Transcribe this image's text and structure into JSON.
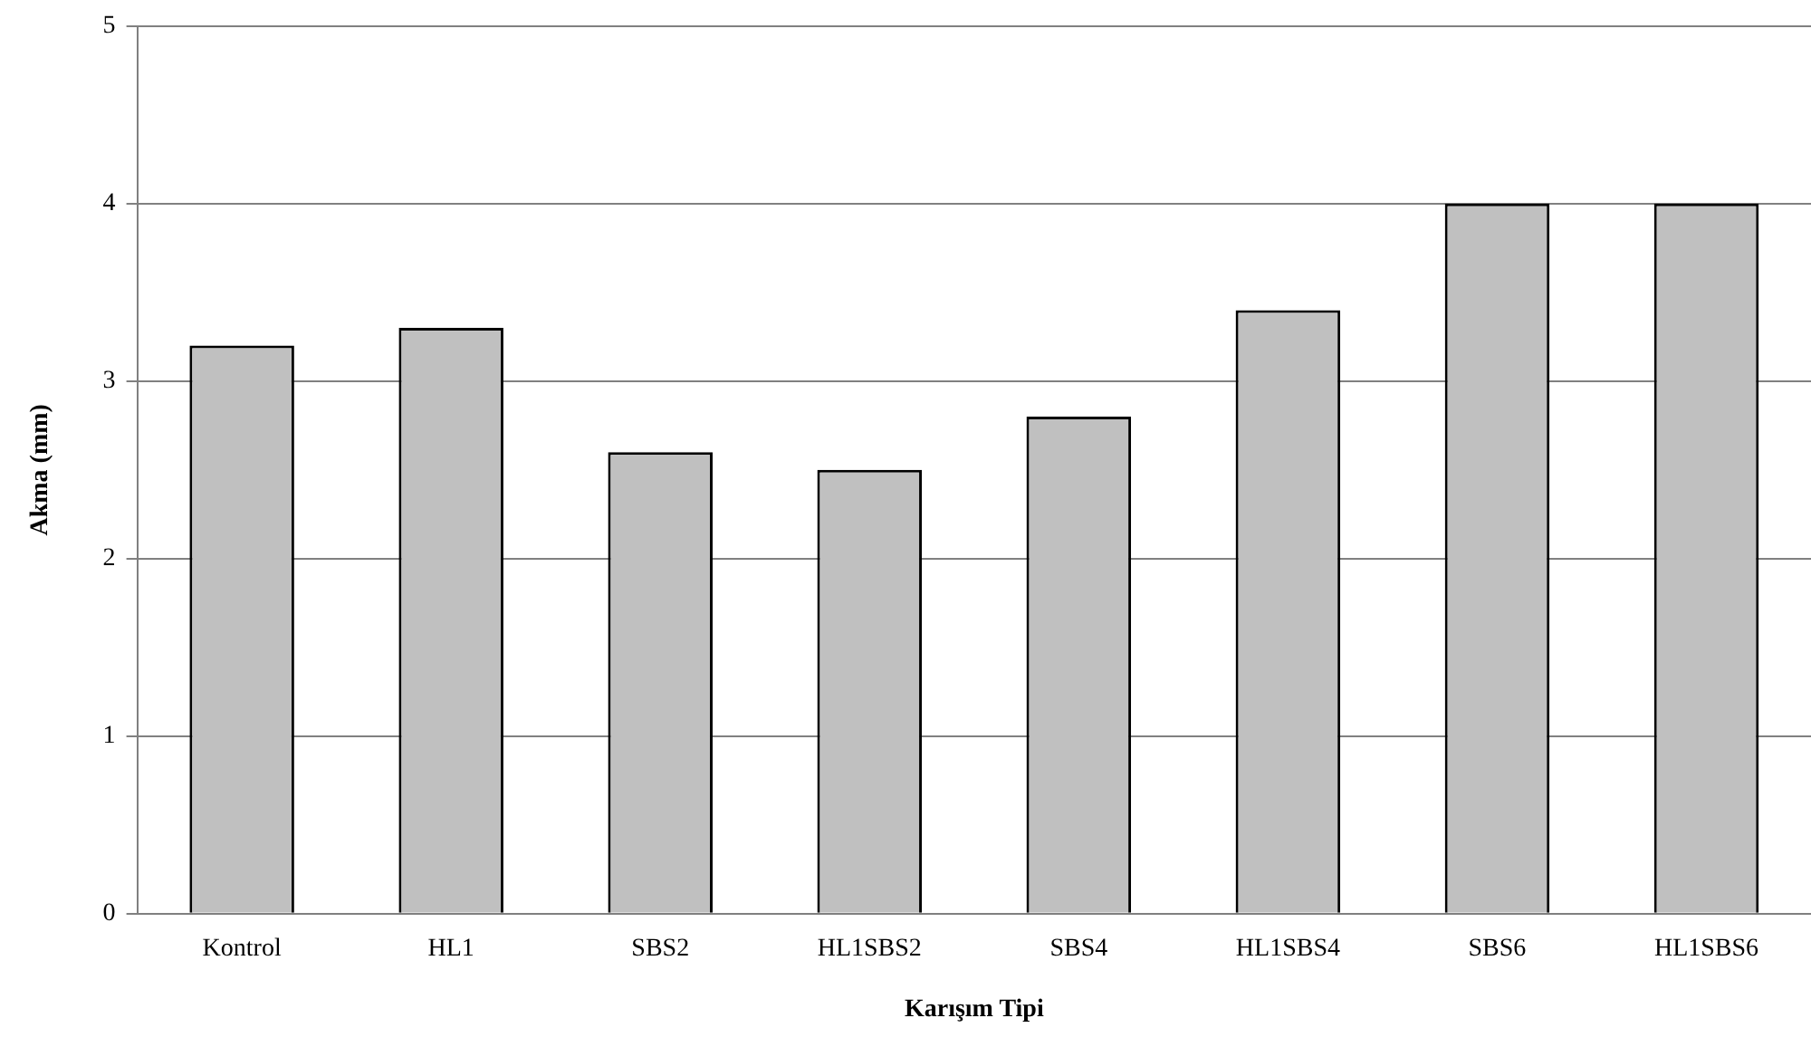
{
  "chart_data": {
    "type": "bar",
    "xlabel": "Karışım Tipi",
    "ylabel": "Akma (mm)",
    "categories": [
      "Kontrol",
      "HL1",
      "SBS2",
      "HL1SBS2",
      "SBS4",
      "HL1SBS4",
      "SBS6",
      "HL1SBS6"
    ],
    "values": [
      3.2,
      3.3,
      2.6,
      2.5,
      2.8,
      3.4,
      4.0,
      4.0
    ],
    "color": "#c0c0c0",
    "ylim": [
      0,
      5
    ],
    "yticks": [
      0,
      1,
      2,
      3,
      4,
      5
    ],
    "grid": "y",
    "legend": false
  }
}
